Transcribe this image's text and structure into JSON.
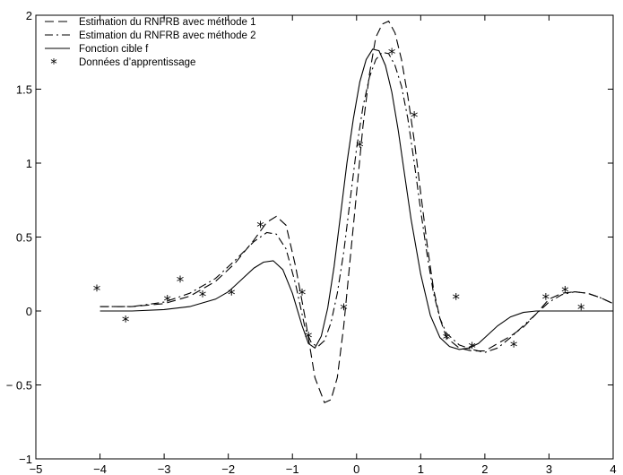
{
  "chart_data": {
    "type": "line",
    "title": "",
    "xlabel": "",
    "ylabel": "",
    "xlim": [
      -5,
      4
    ],
    "ylim": [
      -1,
      2
    ],
    "x_ticks": [
      -5,
      -4,
      -3,
      -2,
      -1,
      0,
      1,
      2,
      3,
      4
    ],
    "y_ticks": [
      -1,
      -0.5,
      0,
      0.5,
      1,
      1.5,
      2
    ],
    "x_tick_labels": [
      "−5",
      "−4",
      "−3",
      "−2",
      "−1",
      "0",
      "1",
      "2",
      "3",
      "4"
    ],
    "y_tick_labels": [
      "−1",
      "− 0.5",
      "0",
      "0.5",
      "1",
      "1.5",
      "2"
    ],
    "grid": false,
    "legend_position": "top-left",
    "legend": [
      "Estimation du RNFRB avec méthode 1",
      "Estimation du RNFRB avec méthode 2",
      "Fonction cible f",
      "Données d’apprentissage"
    ],
    "series": [
      {
        "name": "Estimation du RNFRB avec méthode 1",
        "style": "dashed",
        "x": [
          -4.0,
          -3.5,
          -3.0,
          -2.6,
          -2.2,
          -1.9,
          -1.6,
          -1.4,
          -1.25,
          -1.1,
          -0.95,
          -0.8,
          -0.65,
          -0.5,
          -0.4,
          -0.3,
          -0.2,
          -0.1,
          0.0,
          0.1,
          0.2,
          0.3,
          0.4,
          0.5,
          0.6,
          0.7,
          0.8,
          0.9,
          1.0,
          1.1,
          1.2,
          1.3,
          1.4,
          1.6,
          1.8,
          2.0,
          2.2,
          2.4,
          2.6,
          2.8,
          3.0,
          3.2,
          3.4,
          3.6,
          3.8,
          4.0
        ],
        "y": [
          0.03,
          0.03,
          0.05,
          0.1,
          0.2,
          0.32,
          0.48,
          0.6,
          0.64,
          0.58,
          0.3,
          -0.05,
          -0.45,
          -0.62,
          -0.6,
          -0.45,
          -0.1,
          0.35,
          0.8,
          1.25,
          1.6,
          1.85,
          1.94,
          1.96,
          1.88,
          1.7,
          1.45,
          1.15,
          0.8,
          0.45,
          0.15,
          -0.05,
          -0.18,
          -0.25,
          -0.27,
          -0.27,
          -0.22,
          -0.17,
          -0.11,
          -0.02,
          0.08,
          0.12,
          0.13,
          0.12,
          0.09,
          0.05
        ]
      },
      {
        "name": "Estimation du RNFRB avec méthode 2",
        "style": "dashdot",
        "x": [
          -4.0,
          -3.5,
          -3.0,
          -2.6,
          -2.2,
          -1.9,
          -1.6,
          -1.4,
          -1.25,
          -1.1,
          -0.95,
          -0.8,
          -0.7,
          -0.6,
          -0.5,
          -0.4,
          -0.3,
          -0.2,
          -0.1,
          0.0,
          0.1,
          0.2,
          0.3,
          0.4,
          0.5,
          0.6,
          0.7,
          0.8,
          0.9,
          1.0,
          1.1,
          1.2,
          1.3,
          1.4,
          1.6,
          1.8,
          2.0,
          2.2,
          2.4,
          2.6,
          2.8,
          3.0,
          3.2,
          3.4,
          3.6,
          3.8,
          4.0
        ],
        "y": [
          0.03,
          0.03,
          0.06,
          0.12,
          0.22,
          0.34,
          0.47,
          0.53,
          0.52,
          0.42,
          0.18,
          -0.12,
          -0.22,
          -0.24,
          -0.2,
          -0.08,
          0.12,
          0.4,
          0.75,
          1.1,
          1.38,
          1.58,
          1.7,
          1.75,
          1.74,
          1.66,
          1.52,
          1.3,
          1.0,
          0.68,
          0.38,
          0.12,
          -0.05,
          -0.15,
          -0.23,
          -0.26,
          -0.28,
          -0.25,
          -0.18,
          -0.1,
          -0.02,
          0.06,
          0.11,
          0.13,
          0.12,
          0.09,
          0.05
        ]
      },
      {
        "name": "Fonction cible f",
        "style": "solid",
        "x": [
          -4.0,
          -3.5,
          -3.0,
          -2.6,
          -2.2,
          -2.0,
          -1.8,
          -1.6,
          -1.45,
          -1.3,
          -1.15,
          -1.0,
          -0.85,
          -0.75,
          -0.65,
          -0.55,
          -0.45,
          -0.35,
          -0.25,
          -0.15,
          -0.05,
          0.05,
          0.15,
          0.25,
          0.35,
          0.45,
          0.55,
          0.65,
          0.75,
          0.85,
          1.0,
          1.15,
          1.3,
          1.45,
          1.6,
          1.75,
          1.9,
          2.05,
          2.2,
          2.4,
          2.6,
          2.8,
          3.0,
          3.2,
          3.5,
          4.0
        ],
        "y": [
          0.0,
          0.0,
          0.01,
          0.03,
          0.08,
          0.13,
          0.21,
          0.29,
          0.33,
          0.34,
          0.28,
          0.12,
          -0.1,
          -0.22,
          -0.25,
          -0.17,
          0.02,
          0.3,
          0.65,
          1.0,
          1.3,
          1.55,
          1.7,
          1.77,
          1.76,
          1.66,
          1.48,
          1.22,
          0.92,
          0.62,
          0.25,
          -0.03,
          -0.18,
          -0.24,
          -0.26,
          -0.25,
          -0.22,
          -0.16,
          -0.1,
          -0.04,
          -0.01,
          0.0,
          0.0,
          0.0,
          0.0,
          0.0
        ]
      },
      {
        "name": "Données d’apprentissage",
        "style": "markers",
        "x": [
          -4.05,
          -3.6,
          -2.95,
          -2.75,
          -2.4,
          -1.95,
          -1.5,
          -0.85,
          -0.75,
          -0.2,
          0.05,
          0.55,
          0.9,
          1.4,
          1.55,
          1.8,
          2.45,
          2.95,
          3.25,
          3.5
        ],
        "y": [
          0.15,
          -0.06,
          0.08,
          0.21,
          0.11,
          0.12,
          0.58,
          0.12,
          -0.17,
          0.02,
          1.12,
          1.75,
          1.32,
          -0.18,
          0.09,
          -0.24,
          -0.23,
          0.09,
          0.14,
          0.02
        ]
      }
    ]
  }
}
